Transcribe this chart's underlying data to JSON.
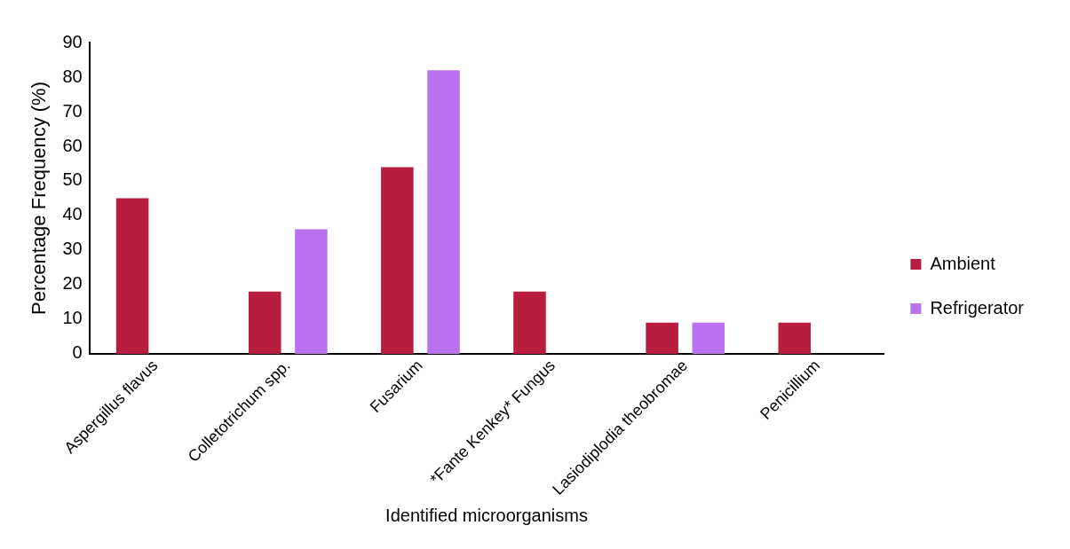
{
  "chart_data": {
    "type": "bar",
    "xlabel": "Identified microorganisms",
    "ylabel": "Percentage Frequency (%)",
    "categories": [
      "Aspergillus flavus",
      "Colletotrichum spp.",
      "Fusarium",
      "*Fante Kenkey* Fungus",
      "Lasiodiplodia theobromae",
      "Penicillium"
    ],
    "series": [
      {
        "name": "Ambient",
        "color": "#b81d40",
        "values": [
          45,
          18,
          54,
          18,
          9,
          9
        ]
      },
      {
        "name": "Refrigerator",
        "color": "#bb72ee",
        "values": [
          0,
          36,
          82,
          0,
          9,
          0
        ]
      }
    ],
    "ylim": [
      0,
      90
    ],
    "yticks": [
      0,
      10,
      20,
      30,
      40,
      50,
      60,
      70,
      80,
      90
    ],
    "grid": false,
    "legend": "right"
  }
}
